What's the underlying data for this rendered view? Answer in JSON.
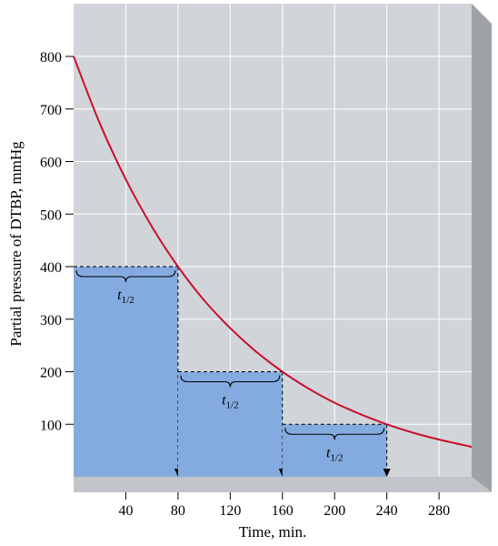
{
  "chart_data": {
    "type": "line",
    "xlabel": "Time, min.",
    "ylabel": "Partial pressure of DTBP, mmHg",
    "xlim": [
      0,
      305
    ],
    "ylim": [
      0,
      800
    ],
    "x_ticks": [
      40,
      80,
      120,
      160,
      200,
      240,
      280
    ],
    "x_tick_labels": [
      "40",
      "80",
      "120",
      "160",
      "200",
      "240",
      "280"
    ],
    "y_ticks": [
      100,
      200,
      300,
      400,
      500,
      600,
      700,
      800
    ],
    "y_tick_labels": [
      "100",
      "200",
      "300",
      "400",
      "500",
      "600",
      "700",
      "800"
    ],
    "grid": true,
    "series": [
      {
        "color": "#c8102e",
        "x": [
          0,
          20,
          40,
          60,
          80,
          100,
          120,
          140,
          160,
          180,
          200,
          220,
          240,
          260,
          280,
          305
        ],
        "y": [
          800,
          673,
          566,
          476,
          400,
          336,
          283,
          238,
          200,
          168,
          141,
          119,
          100,
          84,
          71,
          57
        ]
      }
    ],
    "half_life_steps": [
      {
        "x_start": 0,
        "x_end": 80,
        "level": 400,
        "label": "t",
        "label_sub": "1/2"
      },
      {
        "x_start": 80,
        "x_end": 160,
        "level": 200,
        "label": "t",
        "label_sub": "1/2"
      },
      {
        "x_start": 160,
        "x_end": 240,
        "level": 100,
        "label": "t",
        "label_sub": "1/2"
      }
    ],
    "colors": {
      "plot_background": "#d1d5da",
      "panel_side": "#9fa2a6",
      "panel_bottom": "#c1c5c9",
      "grid": "#ffffff",
      "step_fill": "#84abdf",
      "curve": "#c8102e",
      "dashed": "#000000"
    }
  }
}
